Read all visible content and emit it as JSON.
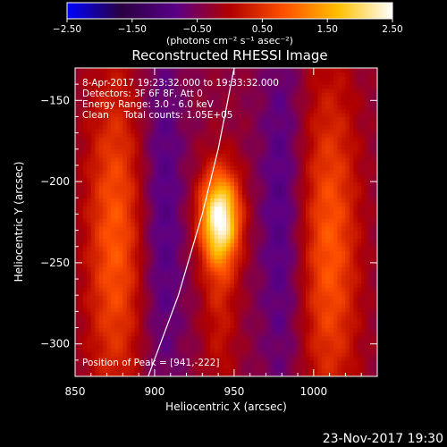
{
  "chart_data": {
    "type": "heatmap",
    "title": "Reconstructed RHESSI Image",
    "xlabel": "Heliocentric X (arcsec)",
    "ylabel": "Heliocentric Y (arcsec)",
    "xlim": [
      850,
      1040
    ],
    "ylim": [
      -320,
      -130
    ],
    "x_ticks": [
      850,
      900,
      950,
      1000
    ],
    "y_ticks": [
      -150,
      -200,
      -250,
      -300
    ],
    "x_tick_labels": [
      "850",
      "900",
      "950",
      "1000"
    ],
    "y_tick_labels": [
      "−150",
      "−200",
      "−250",
      "−300"
    ],
    "colorbar": {
      "min": -2.5,
      "max": 2.5,
      "ticks": [
        "−2.50",
        "−1.50",
        "−0.50",
        "0.50",
        "1.50",
        "2.50"
      ],
      "unit_label": "(photons cm⁻² s⁻¹ asec⁻²)",
      "colormap_stops": [
        "#0000ff",
        "#2a0040",
        "#5a0088",
        "#b00000",
        "#ff5000",
        "#ffc000",
        "#ffffff"
      ]
    },
    "annotations": [
      "8-Apr-2017 19:23:32.000 to 19:33:32.000",
      "Detectors: 3F 6F 8F, Att 0",
      "Energy Range: 3.0 - 6.0 keV",
      "Clean     Total counts: 1.05E+05"
    ],
    "peak_label": "Position of Peak = [941,-222]",
    "peak": {
      "x": 941,
      "y": -222,
      "value": 2.5
    },
    "image_components": [
      {
        "kind": "source",
        "x": 941,
        "y": -222,
        "sx": 9,
        "sy": 20,
        "value": 2.6
      },
      {
        "kind": "sidelobe",
        "x": 875,
        "y": -235,
        "sx": 13,
        "sy": 75,
        "value": 1.2
      },
      {
        "kind": "sidelobe",
        "x": 1010,
        "y": -240,
        "sx": 13,
        "sy": 75,
        "value": 1.2
      },
      {
        "kind": "negative_ring",
        "x": 905,
        "y": -220,
        "sx": 10,
        "sy": 90,
        "value": -0.6
      },
      {
        "kind": "negative_ring",
        "x": 980,
        "y": -220,
        "sx": 10,
        "sy": 90,
        "value": -0.6
      },
      {
        "kind": "pedestal",
        "x": 941,
        "y": -270,
        "sx": 8,
        "sy": 45,
        "value": 0.6
      }
    ],
    "limb_points": [
      [
        896,
        -320
      ],
      [
        915,
        -270
      ],
      [
        930,
        -220
      ],
      [
        940,
        -180
      ],
      [
        946,
        -150
      ],
      [
        950,
        -130
      ]
    ]
  },
  "footer": {
    "timestamp": "23-Nov-2017 19:30"
  }
}
